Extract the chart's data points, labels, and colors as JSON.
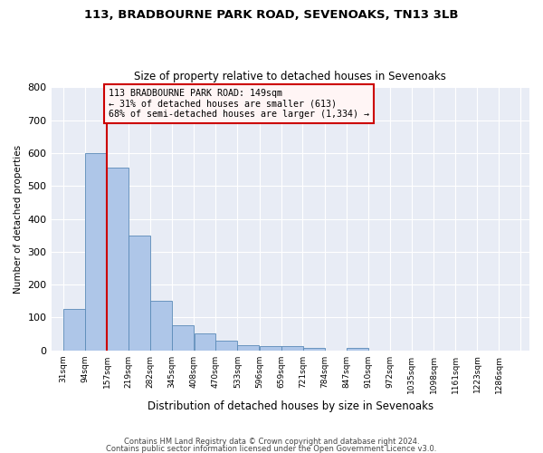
{
  "title1": "113, BRADBOURNE PARK ROAD, SEVENOAKS, TN13 3LB",
  "title2": "Size of property relative to detached houses in Sevenoaks",
  "xlabel": "Distribution of detached houses by size in Sevenoaks",
  "ylabel": "Number of detached properties",
  "bin_labels": [
    "31sqm",
    "94sqm",
    "157sqm",
    "219sqm",
    "282sqm",
    "345sqm",
    "408sqm",
    "470sqm",
    "533sqm",
    "596sqm",
    "659sqm",
    "721sqm",
    "784sqm",
    "847sqm",
    "910sqm",
    "972sqm",
    "1035sqm",
    "1098sqm",
    "1161sqm",
    "1223sqm",
    "1286sqm"
  ],
  "bin_edges": [
    31,
    94,
    157,
    219,
    282,
    345,
    408,
    470,
    533,
    596,
    659,
    721,
    784,
    847,
    910,
    972,
    1035,
    1098,
    1161,
    1223,
    1286
  ],
  "bar_heights": [
    125,
    600,
    555,
    348,
    150,
    77,
    52,
    30,
    15,
    13,
    13,
    7,
    0,
    8,
    0,
    0,
    0,
    0,
    0,
    0
  ],
  "bar_color": "#aec6e8",
  "bar_edge_color": "#5a8ab8",
  "background_color": "#e8ecf5",
  "grid_color": "#ffffff",
  "vline_x": 157,
  "vline_color": "#cc0000",
  "annotation_line1": "113 BRADBOURNE PARK ROAD: 149sqm",
  "annotation_line2": "← 31% of detached houses are smaller (613)",
  "annotation_line3": "68% of semi-detached houses are larger (1,334) →",
  "annotation_box_facecolor": "#fff5f5",
  "annotation_box_edge": "#cc0000",
  "ylim": [
    0,
    800
  ],
  "yticks": [
    0,
    100,
    200,
    300,
    400,
    500,
    600,
    700,
    800
  ],
  "footer1": "Contains HM Land Registry data © Crown copyright and database right 2024.",
  "footer2": "Contains public sector information licensed under the Open Government Licence v3.0."
}
